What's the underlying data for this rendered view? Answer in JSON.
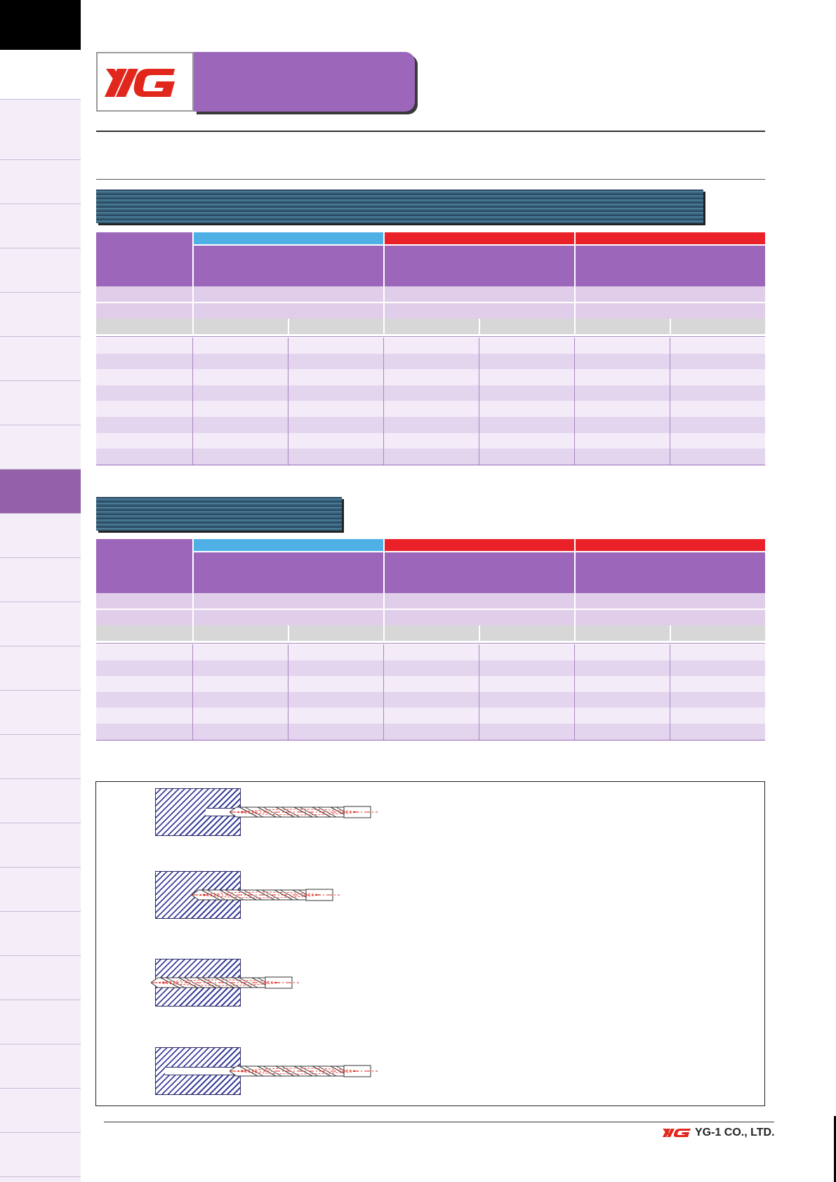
{
  "brand": {
    "logo_text": "YG",
    "accent": "#e1261c",
    "purple": "#9c67bb"
  },
  "footer": {
    "company": "YG-1 CO., LTD."
  },
  "colors": {
    "blue_band": "#4fb0e6",
    "red_band": "#ea2128",
    "section_bar": "#36617c"
  },
  "diagram": {
    "icons": [
      "drill-bit-icon",
      "drill-bit-icon",
      "drill-bit-icon",
      "drill-bit-icon"
    ]
  }
}
